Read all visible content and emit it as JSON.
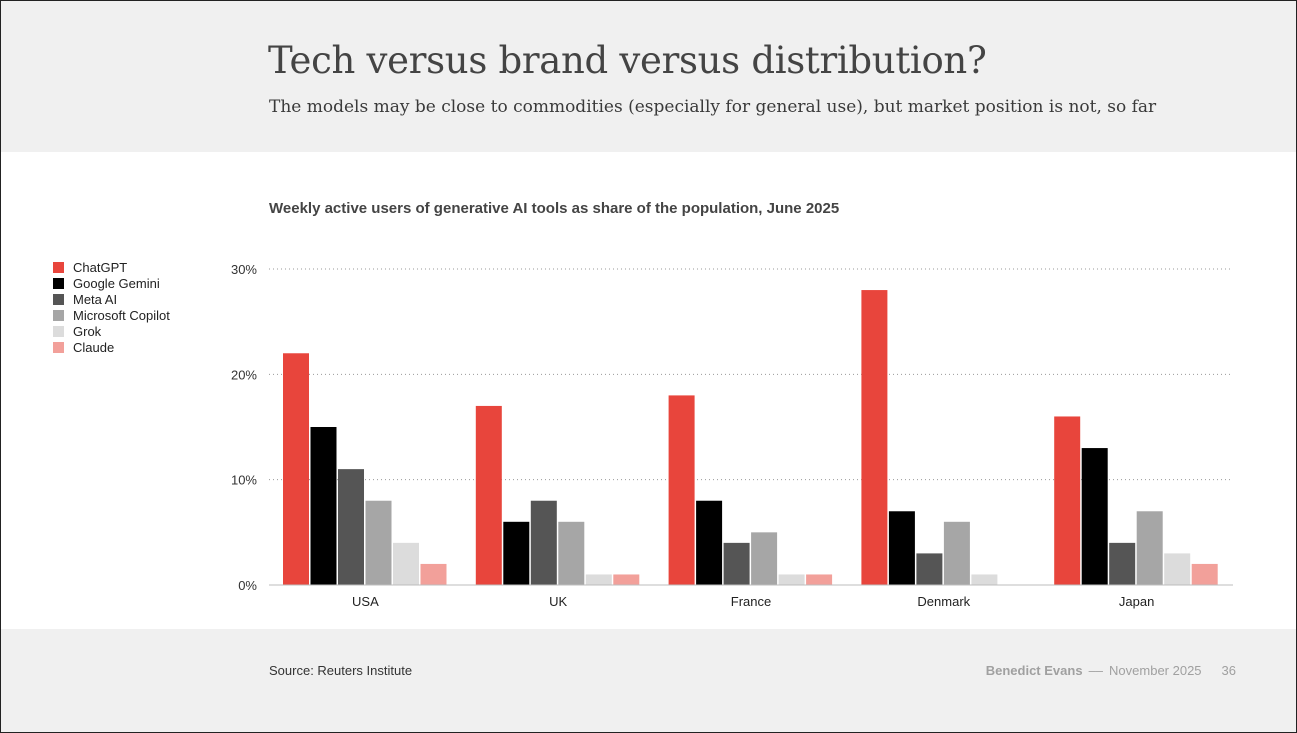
{
  "header": {
    "title": "Tech versus brand versus distribution?",
    "subtitle": "The models may be close to commodities (especially for general use), but market position is not, so far"
  },
  "chart_data": {
    "type": "bar",
    "title": "Weekly active users of generative AI tools as share of the population, June 2025",
    "xlabel": "",
    "ylabel": "",
    "ylim": [
      0,
      30
    ],
    "yticks": [
      0,
      10,
      20,
      30
    ],
    "ytick_labels": [
      "0%",
      "10%",
      "20%",
      "30%"
    ],
    "grid": true,
    "legend_position": "top-left",
    "categories": [
      "USA",
      "UK",
      "France",
      "Denmark",
      "Japan"
    ],
    "series": [
      {
        "name": "ChatGPT",
        "color": "#e8453c",
        "values": [
          22,
          17,
          18,
          28,
          16
        ]
      },
      {
        "name": "Google Gemini",
        "color": "#000000",
        "values": [
          15,
          6,
          8,
          7,
          13
        ]
      },
      {
        "name": "Meta AI",
        "color": "#555555",
        "values": [
          11,
          8,
          4,
          3,
          4
        ]
      },
      {
        "name": "Microsoft Copilot",
        "color": "#a6a6a6",
        "values": [
          8,
          6,
          5,
          6,
          7
        ]
      },
      {
        "name": "Grok",
        "color": "#dcdcdc",
        "values": [
          4,
          1,
          1,
          1,
          3
        ]
      },
      {
        "name": "Claude",
        "color": "#f2a09a",
        "values": [
          2,
          1,
          1,
          0,
          2
        ]
      }
    ]
  },
  "footer": {
    "source": "Source: Reuters Institute",
    "author": "Benedict Evans",
    "separator": "––",
    "date": "November 2025",
    "page": "36"
  }
}
